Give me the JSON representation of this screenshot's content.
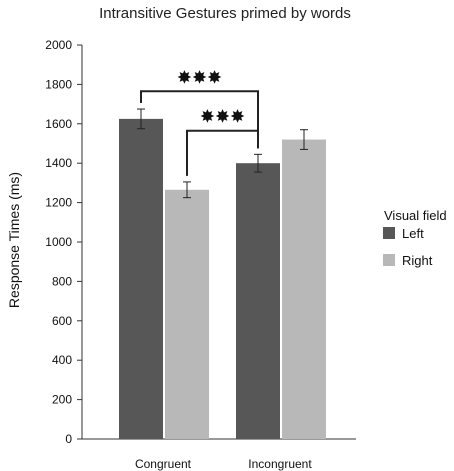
{
  "chart_data": {
    "type": "bar",
    "title": "Intransitive Gestures primed by words",
    "xlabel": "",
    "ylabel": "Response Times (ms)",
    "ylim": [
      0,
      2000
    ],
    "yticks": [
      0,
      200,
      400,
      600,
      800,
      1000,
      1200,
      1400,
      1600,
      1800,
      2000
    ],
    "categories": [
      "Congruent",
      "Incongruent"
    ],
    "series": [
      {
        "name": "Left",
        "color": "#575757",
        "values": [
          1625,
          1400
        ],
        "errors": [
          50,
          45
        ]
      },
      {
        "name": "Right",
        "color": "#b8b8b8",
        "values": [
          1265,
          1520
        ],
        "errors": [
          40,
          50
        ]
      }
    ],
    "legend": {
      "title": "Visual field",
      "placement": "right"
    },
    "grid": false,
    "annotations": [
      {
        "label": "✸✸✸",
        "from": {
          "category": "Congruent",
          "series": "Left"
        },
        "to": {
          "category": "Incongruent",
          "series": "Left"
        },
        "y": 1765
      },
      {
        "label": "✸✸✸",
        "from": {
          "category": "Congruent",
          "series": "Right"
        },
        "to": {
          "category": "Incongruent",
          "series": "Left"
        },
        "y": 1565
      }
    ]
  }
}
